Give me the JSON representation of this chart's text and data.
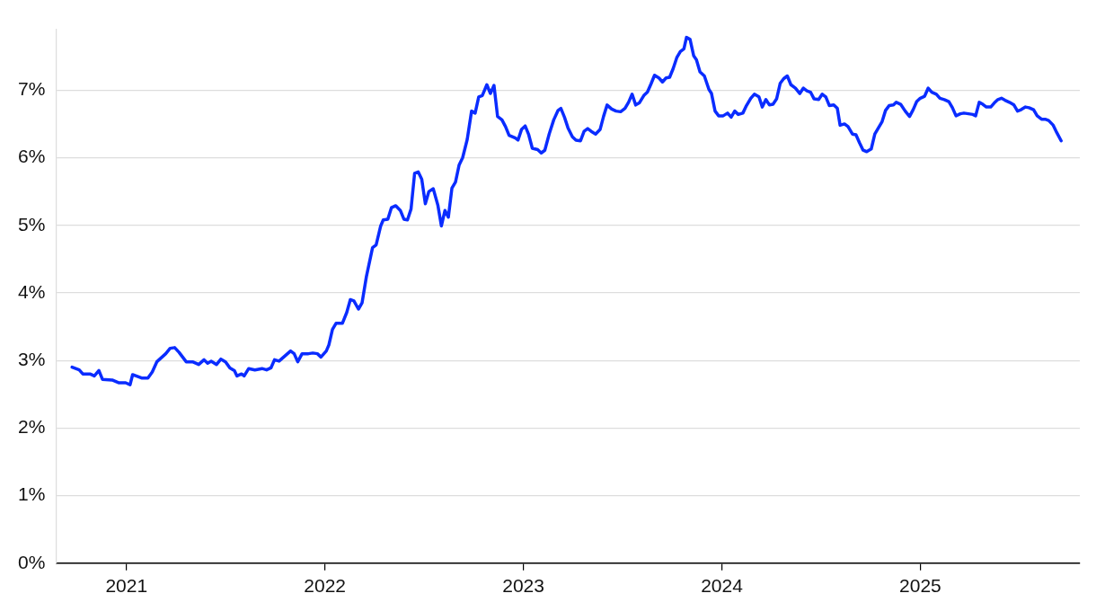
{
  "chart_data": {
    "type": "line",
    "xlim": [
      2020.645,
      2025.804
    ],
    "xticks": [
      2021,
      2022,
      2023,
      2024,
      2025
    ],
    "ylim": [
      0,
      7.9
    ],
    "yticks": [
      {
        "value": 0,
        "label": "0%"
      },
      {
        "value": 1,
        "label": "1%"
      },
      {
        "value": 2,
        "label": "2%"
      },
      {
        "value": 3,
        "label": "3%"
      },
      {
        "value": 4,
        "label": "4%"
      },
      {
        "value": 5,
        "label": "5%"
      },
      {
        "value": 6,
        "label": "6%"
      },
      {
        "value": 7,
        "label": "7%"
      }
    ],
    "grid": "y",
    "legend": false,
    "marker": "none",
    "line_style": "solid",
    "series": [
      {
        "color": "#0a2cff",
        "x": [
          2020.726,
          2020.762,
          2020.78,
          2020.816,
          2020.838,
          2020.861,
          2020.879,
          2020.928,
          2020.96,
          2020.996,
          2021.018,
          2021.031,
          2021.049,
          2021.076,
          2021.108,
          2021.13,
          2021.153,
          2021.198,
          2021.22,
          2021.243,
          2021.265,
          2021.301,
          2021.333,
          2021.364,
          2021.391,
          2021.409,
          2021.427,
          2021.454,
          2021.476,
          2021.499,
          2021.521,
          2021.544,
          2021.557,
          2021.58,
          2021.593,
          2021.616,
          2021.647,
          2021.683,
          2021.706,
          2021.728,
          2021.746,
          2021.769,
          2021.796,
          2021.827,
          2021.845,
          2021.863,
          2021.885,
          2021.917,
          2021.939,
          2021.962,
          2021.98,
          2022.007,
          2022.02,
          2022.038,
          2022.056,
          2022.088,
          2022.11,
          2022.128,
          2022.146,
          2022.169,
          2022.187,
          2022.209,
          2022.24,
          2022.258,
          2022.281,
          2022.294,
          2022.317,
          2022.335,
          2022.357,
          2022.38,
          2022.398,
          2022.416,
          2022.434,
          2022.452,
          2022.47,
          2022.488,
          2022.506,
          2022.524,
          2022.546,
          2022.569,
          2022.587,
          2022.605,
          2022.622,
          2022.64,
          2022.658,
          2022.676,
          2022.694,
          2022.717,
          2022.739,
          2022.757,
          2022.775,
          2022.793,
          2022.816,
          2022.834,
          2022.852,
          2022.87,
          2022.892,
          2022.91,
          2022.928,
          2022.96,
          2022.973,
          2022.991,
          2023.009,
          2023.027,
          2023.045,
          2023.072,
          2023.09,
          2023.108,
          2023.13,
          2023.153,
          2023.175,
          2023.189,
          2023.207,
          2023.225,
          2023.247,
          2023.265,
          2023.288,
          2023.306,
          2023.324,
          2023.342,
          2023.364,
          2023.387,
          2023.404,
          2023.422,
          2023.445,
          2023.467,
          2023.49,
          2023.512,
          2023.53,
          2023.548,
          2023.566,
          2023.584,
          2023.607,
          2023.625,
          2023.643,
          2023.661,
          2023.683,
          2023.701,
          2023.719,
          2023.737,
          2023.755,
          2023.773,
          2023.791,
          2023.809,
          2023.822,
          2023.84,
          2023.858,
          2023.872,
          2023.89,
          2023.912,
          2023.935,
          2023.948,
          2023.966,
          2023.984,
          2024.007,
          2024.029,
          2024.047,
          2024.065,
          2024.083,
          2024.106,
          2024.124,
          2024.146,
          2024.164,
          2024.187,
          2024.204,
          2024.222,
          2024.24,
          2024.258,
          2024.276,
          2024.294,
          2024.312,
          2024.33,
          2024.348,
          2024.371,
          2024.393,
          2024.411,
          2024.429,
          2024.447,
          2024.465,
          2024.488,
          2024.506,
          2024.524,
          2024.542,
          2024.564,
          2024.582,
          2024.596,
          2024.618,
          2024.636,
          2024.658,
          2024.676,
          2024.694,
          2024.712,
          2024.73,
          2024.753,
          2024.771,
          2024.789,
          2024.807,
          2024.825,
          2024.843,
          2024.865,
          2024.879,
          2024.901,
          2024.924,
          2024.946,
          2024.964,
          2024.982,
          2025.0,
          2025.022,
          2025.04,
          2025.058,
          2025.081,
          2025.099,
          2025.121,
          2025.144,
          2025.162,
          2025.18,
          2025.202,
          2025.22,
          2025.243,
          2025.265,
          2025.279,
          2025.297,
          2025.315,
          2025.333,
          2025.355,
          2025.373,
          2025.391,
          2025.409,
          2025.427,
          2025.449,
          2025.472,
          2025.49,
          2025.508,
          2025.53,
          2025.548,
          2025.571,
          2025.589,
          2025.611,
          2025.629,
          2025.647,
          2025.67,
          2025.688,
          2025.71
        ],
        "values": [
          2.9,
          2.86,
          2.8,
          2.8,
          2.77,
          2.85,
          2.72,
          2.71,
          2.67,
          2.67,
          2.64,
          2.79,
          2.77,
          2.74,
          2.74,
          2.83,
          2.98,
          3.1,
          3.18,
          3.19,
          3.12,
          2.98,
          2.98,
          2.94,
          3.01,
          2.96,
          2.99,
          2.94,
          3.02,
          2.98,
          2.89,
          2.85,
          2.77,
          2.8,
          2.77,
          2.88,
          2.86,
          2.88,
          2.86,
          2.89,
          3.01,
          2.99,
          3.06,
          3.14,
          3.1,
          2.98,
          3.1,
          3.1,
          3.11,
          3.1,
          3.05,
          3.14,
          3.23,
          3.46,
          3.55,
          3.55,
          3.71,
          3.9,
          3.88,
          3.76,
          3.85,
          4.24,
          4.67,
          4.71,
          4.99,
          5.08,
          5.09,
          5.26,
          5.29,
          5.22,
          5.09,
          5.08,
          5.24,
          5.77,
          5.79,
          5.68,
          5.32,
          5.5,
          5.54,
          5.3,
          4.99,
          5.22,
          5.12,
          5.55,
          5.64,
          5.89,
          6.0,
          6.27,
          6.69,
          6.66,
          6.9,
          6.92,
          7.08,
          6.95,
          7.07,
          6.61,
          6.56,
          6.46,
          6.33,
          6.29,
          6.26,
          6.42,
          6.47,
          6.34,
          6.14,
          6.12,
          6.07,
          6.11,
          6.35,
          6.56,
          6.7,
          6.73,
          6.6,
          6.44,
          6.31,
          6.26,
          6.25,
          6.39,
          6.43,
          6.39,
          6.35,
          6.42,
          6.61,
          6.78,
          6.72,
          6.69,
          6.68,
          6.73,
          6.82,
          6.94,
          6.78,
          6.81,
          6.92,
          6.97,
          7.09,
          7.22,
          7.18,
          7.12,
          7.18,
          7.19,
          7.32,
          7.48,
          7.57,
          7.61,
          7.78,
          7.75,
          7.51,
          7.45,
          7.27,
          7.21,
          7.01,
          6.95,
          6.69,
          6.62,
          6.62,
          6.66,
          6.6,
          6.69,
          6.64,
          6.66,
          6.77,
          6.88,
          6.94,
          6.9,
          6.75,
          6.86,
          6.78,
          6.79,
          6.87,
          7.1,
          7.17,
          7.21,
          7.08,
          7.03,
          6.95,
          7.03,
          6.99,
          6.97,
          6.87,
          6.86,
          6.94,
          6.9,
          6.77,
          6.78,
          6.73,
          6.48,
          6.5,
          6.46,
          6.35,
          6.34,
          6.22,
          6.11,
          6.09,
          6.13,
          6.35,
          6.44,
          6.53,
          6.7,
          6.77,
          6.78,
          6.82,
          6.79,
          6.69,
          6.61,
          6.71,
          6.83,
          6.88,
          6.91,
          7.03,
          6.97,
          6.94,
          6.88,
          6.86,
          6.83,
          6.74,
          6.62,
          6.65,
          6.66,
          6.65,
          6.64,
          6.62,
          6.82,
          6.79,
          6.75,
          6.75,
          6.81,
          6.86,
          6.88,
          6.85,
          6.82,
          6.78,
          6.69,
          6.71,
          6.75,
          6.74,
          6.71,
          6.62,
          6.57,
          6.57,
          6.55,
          6.48,
          6.37,
          6.25
        ]
      }
    ]
  }
}
